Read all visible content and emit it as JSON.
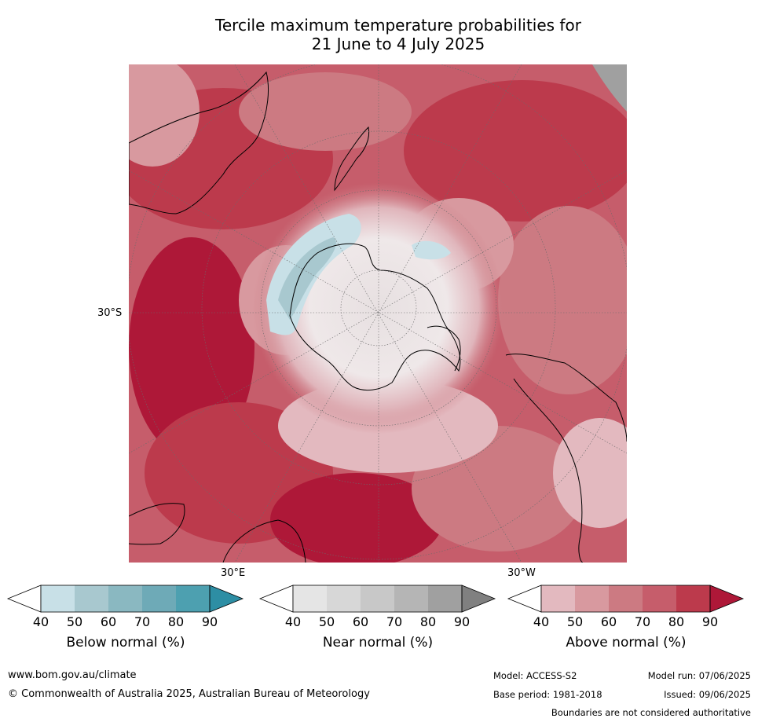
{
  "title_line1": "Tercile maximum temperature probabilities for",
  "title_line2": "21 June to 4 July 2025",
  "map": {
    "projection": "south-polar-stereographic",
    "lat_label": "30°S",
    "lon_label_left": "30°E",
    "lon_label_right": "30°W"
  },
  "legends": [
    {
      "title": "Below normal (%)",
      "ticks": [
        "40",
        "50",
        "60",
        "70",
        "80",
        "90"
      ],
      "colors": [
        "#ffffff",
        "#c8e0e7",
        "#a8c8cf",
        "#8ab8c1",
        "#6eaab7",
        "#4da0b0",
        "#2d8ea4"
      ]
    },
    {
      "title": "Near normal (%)",
      "ticks": [
        "40",
        "50",
        "60",
        "70",
        "80",
        "90"
      ],
      "colors": [
        "#ffffff",
        "#e5e5e5",
        "#d7d7d7",
        "#c8c8c8",
        "#b5b5b5",
        "#a0a0a0",
        "#808080"
      ]
    },
    {
      "title": "Above normal (%)",
      "ticks": [
        "40",
        "50",
        "60",
        "70",
        "80",
        "90"
      ],
      "colors": [
        "#ffffff",
        "#e3b9bf",
        "#d8999f",
        "#cc7a82",
        "#c65d6b",
        "#bc3a4c",
        "#ae1838"
      ]
    }
  ],
  "footer": {
    "url": "www.bom.gov.au/climate",
    "copyright": "© Commonwealth of Australia 2025, Australian Bureau of Meteorology",
    "model": "Model: ACCESS-S2",
    "base_period": "Base period: 1981-2018",
    "model_run": "Model run: 07/06/2025",
    "issued": "Issued: 09/06/2025",
    "disclaimer": "Boundaries are not considered authoritative"
  }
}
